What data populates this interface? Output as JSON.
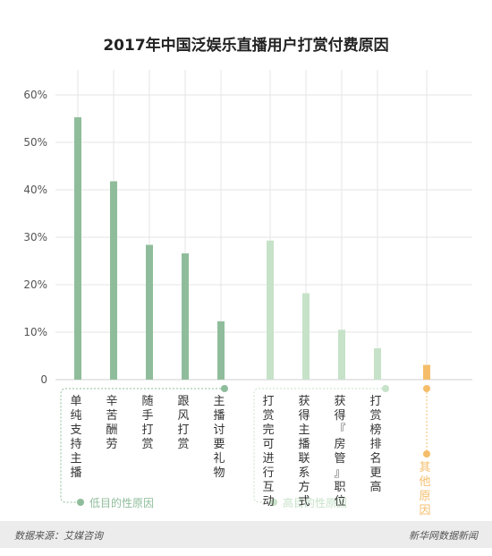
{
  "colors": {
    "low": "#8fbd9b",
    "high": "#c6e2c8",
    "other": "#f5bd6a",
    "grid": "#e6e6e6",
    "axis_text": "#555555"
  },
  "chart_data": {
    "type": "bar",
    "title": "2017年中国泛娱乐直播用户打赏付费原因",
    "ylim": [
      0,
      60
    ],
    "yticks": [
      "0",
      "10%",
      "20%",
      "30%",
      "40%",
      "50%",
      "60%"
    ],
    "grid": true,
    "groups": [
      {
        "name": "低目的性原因",
        "color_key": "low",
        "categories": [
          "单纯支持主播",
          "辛苦酬劳",
          "随手打赏",
          "跟风打赏",
          "主播讨要礼物"
        ],
        "values": [
          55.3,
          41.8,
          28.4,
          26.6,
          12.3
        ]
      },
      {
        "name": "高目的性原因",
        "color_key": "high",
        "categories": [
          "打赏完可进行互动",
          "获得主播联系方式",
          "获得『房管』职位",
          "打赏榜排名更高"
        ],
        "values": [
          29.3,
          18.2,
          10.5,
          6.6
        ]
      },
      {
        "name": "",
        "color_key": "other",
        "categories": [
          "其他原因"
        ],
        "values": [
          3.1
        ]
      }
    ]
  },
  "footer": {
    "source": "数据来源：艾媒咨询",
    "brand": "新华网数据新闻"
  }
}
